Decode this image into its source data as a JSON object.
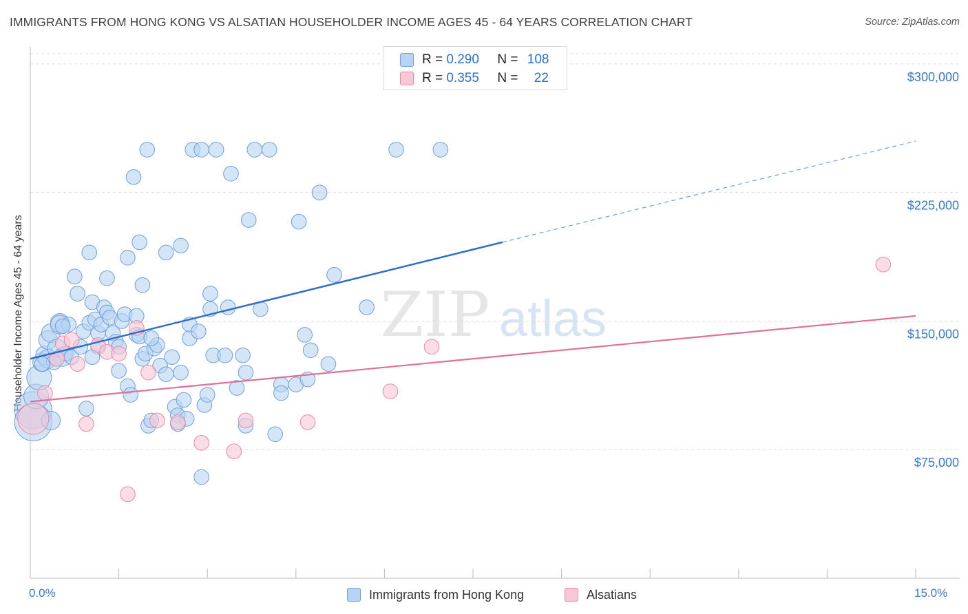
{
  "title": "IMMIGRANTS FROM HONG KONG VS ALSATIAN HOUSEHOLDER INCOME AGES 45 - 64 YEARS CORRELATION CHART",
  "source": "Source: ZipAtlas.com",
  "watermark": {
    "zip": "ZIP",
    "atlas": "atlas"
  },
  "legend_top": {
    "rows": [
      {
        "r_label": "R = ",
        "r_value": "0.290",
        "n_label": "N = ",
        "n_value": "108",
        "color": "#b8d3f3"
      },
      {
        "r_label": "R = ",
        "r_value": "0.355",
        "n_label": "N = ",
        "n_value": "22",
        "color": "#f9c6d6"
      }
    ]
  },
  "legend_bottom": {
    "items": [
      {
        "label": "Immigrants from Hong Kong",
        "color": "#b8d3f3"
      },
      {
        "label": "Alsatians",
        "color": "#f9c6d6"
      }
    ]
  },
  "chart_data": {
    "type": "scatter",
    "title": "IMMIGRANTS FROM HONG KONG VS ALSATIAN HOUSEHOLDER INCOME AGES 45 - 64 YEARS CORRELATION CHART",
    "xlabel": "",
    "ylabel": "Householder Income Ages 45 - 64 years",
    "xlim": [
      0,
      15
    ],
    "ylim": [
      0,
      310000
    ],
    "x_tick_labels": [
      "0.0%",
      "15.0%"
    ],
    "y_ticks": [
      75000,
      150000,
      225000,
      300000
    ],
    "y_tick_labels": [
      "$75,000",
      "$150,000",
      "$225,000",
      "$300,000"
    ],
    "grid": "horizontal dashed",
    "legend_position": "top-center",
    "colors": {
      "blue": "#6e9fdc",
      "blue_fill": "#b8d3f3",
      "blue_line": "#2f6fc7",
      "pink": "#e88aa9",
      "pink_fill": "#f9c6d6",
      "pink_line": "#e07099"
    },
    "series": [
      {
        "name": "Immigrants from Hong Kong",
        "trend": {
          "x": [
            0,
            8
          ],
          "y": [
            128000,
            196000
          ],
          "dashed_to": [
            15,
            255000
          ]
        },
        "points": [
          [
            0.05,
            98000,
            3
          ],
          [
            0.05,
            91000,
            3
          ],
          [
            0.1,
            106000,
            2
          ],
          [
            0.15,
            117000,
            2
          ],
          [
            0.2,
            126000,
            1.5
          ],
          [
            0.25,
            130000,
            1.5
          ],
          [
            0.3,
            139000,
            1.5
          ],
          [
            0.3,
            128000,
            1.5
          ],
          [
            0.35,
            92000,
            1.5
          ],
          [
            0.35,
            143000,
            1.5
          ],
          [
            0.45,
            134000,
            1.5
          ],
          [
            0.5,
            149000,
            1.5
          ],
          [
            0.5,
            148000,
            1.5
          ],
          [
            0.55,
            129000,
            1.5
          ],
          [
            0.6,
            131000,
            1.2
          ],
          [
            0.65,
            148000,
            1.2
          ],
          [
            0.7,
            129000,
            1.2
          ],
          [
            0.75,
            176000,
            1.2
          ],
          [
            0.8,
            166000,
            1.2
          ],
          [
            0.85,
            135000,
            1.2
          ],
          [
            0.9,
            144000,
            1.2
          ],
          [
            0.95,
            99000,
            1.2
          ],
          [
            1.0,
            149000,
            1.2
          ],
          [
            1.0,
            190000,
            1.2
          ],
          [
            1.05,
            161000,
            1.2
          ],
          [
            1.1,
            151000,
            1.2
          ],
          [
            1.15,
            143000,
            1.2
          ],
          [
            1.15,
            135000,
            1.2
          ],
          [
            1.2,
            148000,
            1.2
          ],
          [
            1.25,
            158000,
            1.2
          ],
          [
            1.3,
            155000,
            1.2
          ],
          [
            1.3,
            175000,
            1.2
          ],
          [
            1.35,
            152000,
            1.2
          ],
          [
            1.4,
            143000,
            1.2
          ],
          [
            1.45,
            138000,
            1.2
          ],
          [
            1.5,
            121000,
            1.2
          ],
          [
            1.5,
            135000,
            1.2
          ],
          [
            1.55,
            150000,
            1.2
          ],
          [
            1.6,
            154000,
            1.2
          ],
          [
            1.65,
            112000,
            1.2
          ],
          [
            1.65,
            187000,
            1.2
          ],
          [
            1.7,
            107000,
            1.2
          ],
          [
            1.75,
            234000,
            1.2
          ],
          [
            1.8,
            153000,
            1.2
          ],
          [
            1.8,
            142000,
            1.2
          ],
          [
            1.85,
            141000,
            1.2
          ],
          [
            1.85,
            196000,
            1.2
          ],
          [
            1.9,
            171000,
            1.2
          ],
          [
            1.9,
            128000,
            1.2
          ],
          [
            1.95,
            131000,
            1.2
          ],
          [
            1.98,
            250000,
            1.2
          ],
          [
            2.0,
            89000,
            1.2
          ],
          [
            2.05,
            92000,
            1.2
          ],
          [
            2.1,
            134000,
            1.2
          ],
          [
            2.15,
            136000,
            1.2
          ],
          [
            2.2,
            124000,
            1.2
          ],
          [
            2.3,
            119000,
            1.2
          ],
          [
            2.3,
            190000,
            1.2
          ],
          [
            2.4,
            129000,
            1.2
          ],
          [
            2.45,
            100000,
            1.2
          ],
          [
            2.5,
            95000,
            1.2
          ],
          [
            2.55,
            194000,
            1.2
          ],
          [
            2.55,
            120000,
            1.2
          ],
          [
            2.6,
            104000,
            1.2
          ],
          [
            2.65,
            93000,
            1.2
          ],
          [
            2.7,
            140000,
            1.2
          ],
          [
            2.7,
            148000,
            1.2
          ],
          [
            2.75,
            250000,
            1.2
          ],
          [
            2.85,
            144000,
            1.2
          ],
          [
            2.9,
            59000,
            1.2
          ],
          [
            2.9,
            250000,
            1.2
          ],
          [
            2.95,
            101000,
            1.2
          ],
          [
            3.0,
            107000,
            1.2
          ],
          [
            3.05,
            166000,
            1.2
          ],
          [
            3.05,
            157000,
            1.2
          ],
          [
            3.1,
            130000,
            1.2
          ],
          [
            3.15,
            250000,
            1.2
          ],
          [
            3.3,
            130000,
            1.2
          ],
          [
            3.35,
            158000,
            1.2
          ],
          [
            3.4,
            236000,
            1.2
          ],
          [
            3.5,
            111000,
            1.2
          ],
          [
            3.6,
            130000,
            1.2
          ],
          [
            3.65,
            120000,
            1.2
          ],
          [
            3.7,
            209000,
            1.2
          ],
          [
            3.65,
            89000,
            1.2
          ],
          [
            3.8,
            250000,
            1.2
          ],
          [
            3.9,
            157000,
            1.2
          ],
          [
            4.05,
            250000,
            1.2
          ],
          [
            4.15,
            84000,
            1.2
          ],
          [
            4.25,
            113000,
            1.2
          ],
          [
            4.25,
            108000,
            1.2
          ],
          [
            4.5,
            113000,
            1.2
          ],
          [
            4.55,
            208000,
            1.2
          ],
          [
            4.65,
            142000,
            1.2
          ],
          [
            4.7,
            116000,
            1.2
          ],
          [
            4.75,
            133000,
            1.2
          ],
          [
            4.9,
            225000,
            1.2
          ],
          [
            5.05,
            125000,
            1.2
          ],
          [
            5.15,
            177000,
            1.2
          ],
          [
            5.7,
            158000,
            1.2
          ],
          [
            6.2,
            250000,
            1.2
          ],
          [
            6.95,
            250000,
            1.2
          ],
          [
            0.55,
            147000,
            1.2
          ],
          [
            1.05,
            129000,
            1.2
          ],
          [
            0.4,
            126000,
            1.2
          ],
          [
            0.2,
            125000,
            1.2
          ],
          [
            2.05,
            140000,
            1.2
          ],
          [
            2.5,
            90000,
            1.2
          ]
        ]
      },
      {
        "name": "Alsatians",
        "trend": {
          "x": [
            0,
            15
          ],
          "y": [
            103000,
            153000
          ]
        },
        "points": [
          [
            0.05,
            93000,
            2.5
          ],
          [
            0.25,
            108000,
            1.2
          ],
          [
            0.45,
            128000,
            1.2
          ],
          [
            0.55,
            137000,
            1.2
          ],
          [
            0.7,
            139000,
            1.2
          ],
          [
            0.8,
            125000,
            1.2
          ],
          [
            0.95,
            90000,
            1.2
          ],
          [
            1.15,
            136000,
            1.2
          ],
          [
            1.3,
            132000,
            1.2
          ],
          [
            1.5,
            131000,
            1.2
          ],
          [
            1.65,
            49000,
            1.2
          ],
          [
            1.8,
            146000,
            1.2
          ],
          [
            2.0,
            120000,
            1.2
          ],
          [
            2.15,
            92000,
            1.2
          ],
          [
            2.5,
            91000,
            1.2
          ],
          [
            2.9,
            79000,
            1.2
          ],
          [
            3.45,
            74000,
            1.2
          ],
          [
            3.65,
            92000,
            1.2
          ],
          [
            4.7,
            91000,
            1.2
          ],
          [
            6.1,
            109000,
            1.2
          ],
          [
            6.8,
            135000,
            1.2
          ],
          [
            14.45,
            183000,
            1.2
          ]
        ]
      }
    ]
  }
}
